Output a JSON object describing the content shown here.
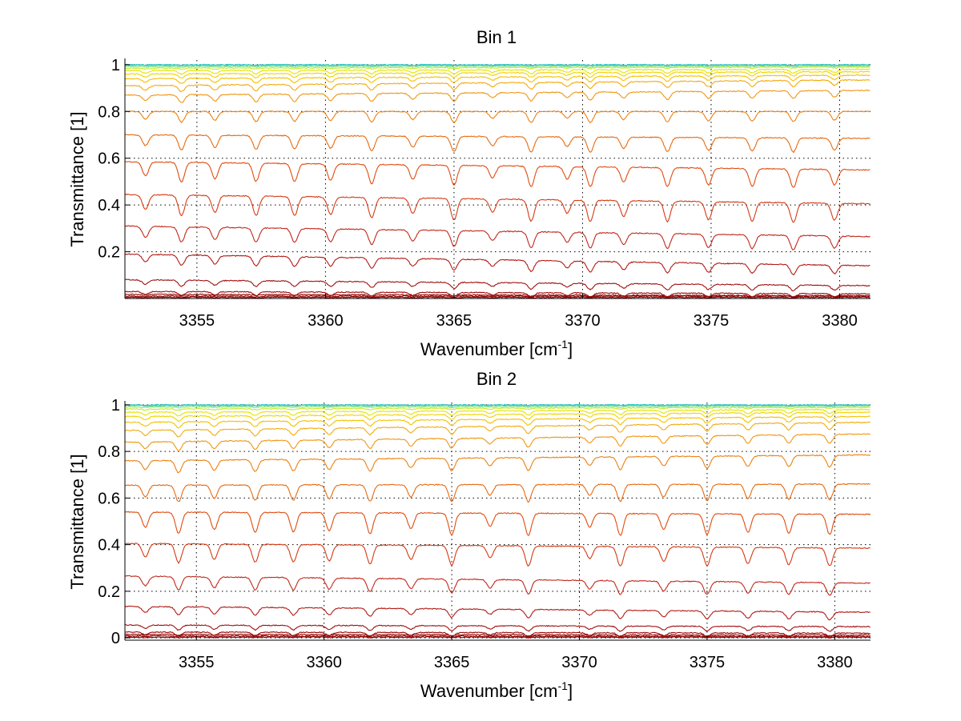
{
  "chart_data": [
    {
      "type": "line",
      "title": "Bin 1",
      "xlabel": "Wavenumber [cm",
      "xlabel_sup": "-1",
      "xlabel_close": "]",
      "ylabel": "Transmittance [1]",
      "xlim": [
        3352.2,
        3381.2
      ],
      "ylim": [
        0.0,
        1.02
      ],
      "xticks": [
        3355,
        3360,
        3365,
        3370,
        3375,
        3380
      ],
      "xtick_labels": [
        "3355",
        "3360",
        "3365",
        "3370",
        "3375",
        "3380"
      ],
      "yticks": [
        0.2,
        0.4,
        0.6,
        0.8,
        1.0
      ],
      "ytick_labels": [
        "0.2",
        "0.4",
        "0.6",
        "0.8",
        "1"
      ],
      "grid": true,
      "colormap": [
        "#8b0000",
        "#c0231b",
        "#e05a10",
        "#f08c14",
        "#f5b800",
        "#e8e800",
        "#9be37a",
        "#2ec6c6"
      ],
      "series": [
        {
          "start": 0.005,
          "end": 0.005,
          "color": "#8b0000"
        },
        {
          "start": 0.01,
          "end": 0.01,
          "color": "#8f0000"
        },
        {
          "start": 0.018,
          "end": 0.012,
          "color": "#950505"
        },
        {
          "start": 0.03,
          "end": 0.02,
          "color": "#9a0a0a"
        },
        {
          "start": 0.08,
          "end": 0.055,
          "color": "#a01010"
        },
        {
          "start": 0.19,
          "end": 0.14,
          "color": "#b01a14"
        },
        {
          "start": 0.31,
          "end": 0.265,
          "color": "#c0281a"
        },
        {
          "start": 0.445,
          "end": 0.405,
          "color": "#d43a14"
        },
        {
          "start": 0.585,
          "end": 0.55,
          "color": "#e04c10"
        },
        {
          "start": 0.7,
          "end": 0.685,
          "color": "#e66a10"
        },
        {
          "start": 0.8,
          "end": 0.8,
          "color": "#ec8012"
        },
        {
          "start": 0.87,
          "end": 0.89,
          "color": "#f09614"
        },
        {
          "start": 0.91,
          "end": 0.935,
          "color": "#f2aa10"
        },
        {
          "start": 0.94,
          "end": 0.955,
          "color": "#f5c000"
        },
        {
          "start": 0.96,
          "end": 0.97,
          "color": "#f0d400"
        },
        {
          "start": 0.975,
          "end": 0.98,
          "color": "#e4e400"
        },
        {
          "start": 0.985,
          "end": 0.99,
          "color": "#c4ea2a"
        },
        {
          "start": 0.992,
          "end": 0.994,
          "color": "#8ee27c"
        },
        {
          "start": 0.997,
          "end": 0.998,
          "color": "#4ad0b2"
        },
        {
          "start": 1.0,
          "end": 1.0,
          "color": "#2ec6c6"
        }
      ],
      "absorption_lines": [
        3353.0,
        3354.4,
        3355.7,
        3357.3,
        3358.8,
        3360.2,
        3361.8,
        3363.4,
        3365.0,
        3366.5,
        3368.0,
        3369.4,
        3370.3,
        3371.6,
        3373.3,
        3374.9,
        3376.6,
        3378.2,
        3379.8
      ]
    },
    {
      "type": "line",
      "title": "Bin 2",
      "xlabel": "Wavenumber [cm",
      "xlabel_sup": "-1",
      "xlabel_close": "]",
      "ylabel": "Transmittance [1]",
      "xlim": [
        3352.2,
        3381.4
      ],
      "ylim": [
        -0.01,
        1.01
      ],
      "xticks": [
        3355,
        3360,
        3365,
        3370,
        3375,
        3380
      ],
      "xtick_labels": [
        "3355",
        "3360",
        "3365",
        "3370",
        "3375",
        "3380"
      ],
      "yticks": [
        0.0,
        0.2,
        0.4,
        0.6,
        0.8,
        1.0
      ],
      "ytick_labels": [
        "0",
        "0.2",
        "0.4",
        "0.6",
        "0.8",
        "1"
      ],
      "grid": true,
      "colormap": [
        "#8b0000",
        "#c0231b",
        "#e05a10",
        "#f08c14",
        "#f5b800",
        "#e8e800",
        "#9be37a",
        "#2ec6c6"
      ],
      "series": [
        {
          "start": 0.003,
          "end": 0.003,
          "color": "#8b0000"
        },
        {
          "start": 0.008,
          "end": 0.006,
          "color": "#8f0000"
        },
        {
          "start": 0.015,
          "end": 0.012,
          "color": "#950505"
        },
        {
          "start": 0.025,
          "end": 0.02,
          "color": "#9a0a0a"
        },
        {
          "start": 0.055,
          "end": 0.048,
          "color": "#a01010"
        },
        {
          "start": 0.135,
          "end": 0.11,
          "color": "#b01a14"
        },
        {
          "start": 0.265,
          "end": 0.235,
          "color": "#c0281a"
        },
        {
          "start": 0.405,
          "end": 0.385,
          "color": "#d43a14"
        },
        {
          "start": 0.54,
          "end": 0.53,
          "color": "#e04c10"
        },
        {
          "start": 0.655,
          "end": 0.66,
          "color": "#e66a10"
        },
        {
          "start": 0.76,
          "end": 0.785,
          "color": "#ec8012"
        },
        {
          "start": 0.84,
          "end": 0.875,
          "color": "#f09614"
        },
        {
          "start": 0.89,
          "end": 0.925,
          "color": "#f2aa10"
        },
        {
          "start": 0.925,
          "end": 0.95,
          "color": "#f5c000"
        },
        {
          "start": 0.95,
          "end": 0.968,
          "color": "#f0d400"
        },
        {
          "start": 0.968,
          "end": 0.98,
          "color": "#e4e400"
        },
        {
          "start": 0.982,
          "end": 0.989,
          "color": "#c4ea2a"
        },
        {
          "start": 0.991,
          "end": 0.994,
          "color": "#8ee27c"
        },
        {
          "start": 0.997,
          "end": 0.998,
          "color": "#4ad0b2"
        },
        {
          "start": 1.0,
          "end": 1.0,
          "color": "#2ec6c6"
        }
      ],
      "absorption_lines": [
        3353.0,
        3354.3,
        3355.7,
        3357.3,
        3358.8,
        3360.2,
        3361.8,
        3363.4,
        3365.0,
        3366.5,
        3368.0,
        3370.4,
        3371.6,
        3373.3,
        3375.0,
        3376.6,
        3378.2,
        3379.8
      ]
    }
  ]
}
